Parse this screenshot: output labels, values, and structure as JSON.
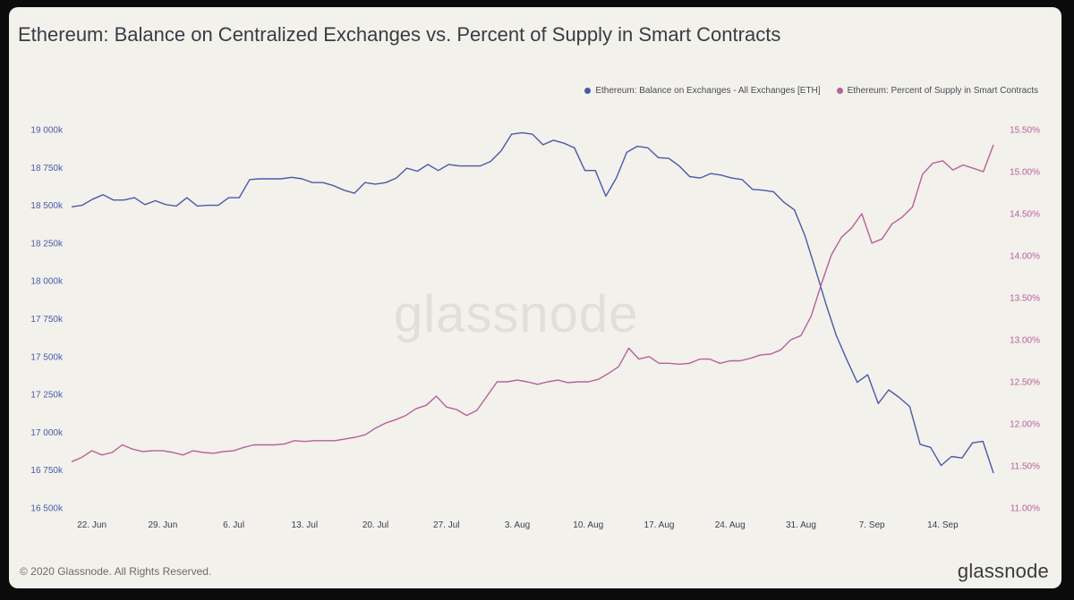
{
  "title": "Ethereum: Balance on Centralized Exchanges vs. Percent of Supply in Smart Contracts",
  "legend": [
    {
      "label": "Ethereum: Balance on Exchanges - All Exchanges [ETH]",
      "color": "#4a5aa8"
    },
    {
      "label": "Ethereum: Percent of Supply in Smart Contracts",
      "color": "#b8609a"
    }
  ],
  "footer": "© 2020 Glassnode. All Rights Reserved.",
  "brand": "glassnode",
  "watermark": "glassnode",
  "chart_data": {
    "type": "line",
    "x_ticks": [
      "22. Jun",
      "29. Jun",
      "6. Jul",
      "13. Jul",
      "20. Jul",
      "27. Jul",
      "3. Aug",
      "10. Aug",
      "17. Aug",
      "24. Aug",
      "31. Aug",
      "7. Sep",
      "14. Sep"
    ],
    "left_axis": {
      "ylim": [
        16500,
        19000
      ],
      "ticks": [
        "16 500k",
        "16 750k",
        "17 000k",
        "17 250k",
        "17 500k",
        "17 750k",
        "18 000k",
        "18 250k",
        "18 500k",
        "18 750k",
        "19 000k"
      ]
    },
    "right_axis": {
      "ylim": [
        11.0,
        15.5
      ],
      "ticks": [
        "11.00%",
        "11.50%",
        "12.00%",
        "12.50%",
        "13.00%",
        "13.50%",
        "14.00%",
        "14.50%",
        "15.00%",
        "15.50%"
      ]
    },
    "grid": "none",
    "legend_position": "top-right",
    "series": [
      {
        "name": "Ethereum: Balance on Exchanges - All Exchanges [ETH]",
        "axis": "left",
        "color": "#4a5aa8",
        "values": [
          18490,
          18500,
          18540,
          18570,
          18535,
          18535,
          18550,
          18505,
          18530,
          18505,
          18495,
          18550,
          18495,
          18500,
          18500,
          18550,
          18550,
          18670,
          18675,
          18675,
          18675,
          18685,
          18675,
          18650,
          18650,
          18630,
          18600,
          18580,
          18650,
          18640,
          18650,
          18680,
          18745,
          18725,
          18770,
          18730,
          18770,
          18760,
          18760,
          18760,
          18790,
          18860,
          18970,
          18980,
          18970,
          18900,
          18930,
          18910,
          18880,
          18730,
          18730,
          18560,
          18680,
          18850,
          18890,
          18880,
          18815,
          18810,
          18760,
          18690,
          18680,
          18710,
          18700,
          18680,
          18670,
          18605,
          18600,
          18590,
          18520,
          18470,
          18300,
          18080,
          17850,
          17640,
          17480,
          17330,
          17380,
          17190,
          17280,
          17230,
          17170,
          16920,
          16900,
          16780,
          16840,
          16830,
          16930,
          16940,
          16730
        ]
      },
      {
        "name": "Ethereum: Percent of Supply in Smart Contracts",
        "axis": "right",
        "color": "#b8609a",
        "values": [
          11.55,
          11.6,
          11.68,
          11.63,
          11.66,
          11.75,
          11.7,
          11.67,
          11.68,
          11.68,
          11.66,
          11.63,
          11.68,
          11.66,
          11.65,
          11.67,
          11.68,
          11.72,
          11.75,
          11.75,
          11.75,
          11.76,
          11.8,
          11.79,
          11.8,
          11.8,
          11.8,
          11.82,
          11.84,
          11.87,
          11.95,
          12.01,
          12.05,
          12.1,
          12.18,
          12.22,
          12.33,
          12.2,
          12.17,
          12.1,
          12.16,
          12.33,
          12.5,
          12.5,
          12.52,
          12.5,
          12.47,
          12.5,
          12.52,
          12.49,
          12.5,
          12.5,
          12.53,
          12.6,
          12.68,
          12.9,
          12.77,
          12.8,
          12.72,
          12.72,
          12.71,
          12.72,
          12.77,
          12.77,
          12.72,
          12.75,
          12.75,
          12.78,
          12.82,
          12.83,
          12.88,
          13.0,
          13.05,
          13.28,
          13.66,
          14.01,
          14.22,
          14.33,
          14.5,
          14.15,
          14.2,
          14.38,
          14.46,
          14.58,
          14.97,
          15.1,
          15.13,
          15.02,
          15.08,
          15.04,
          15.0,
          15.32
        ]
      }
    ]
  }
}
